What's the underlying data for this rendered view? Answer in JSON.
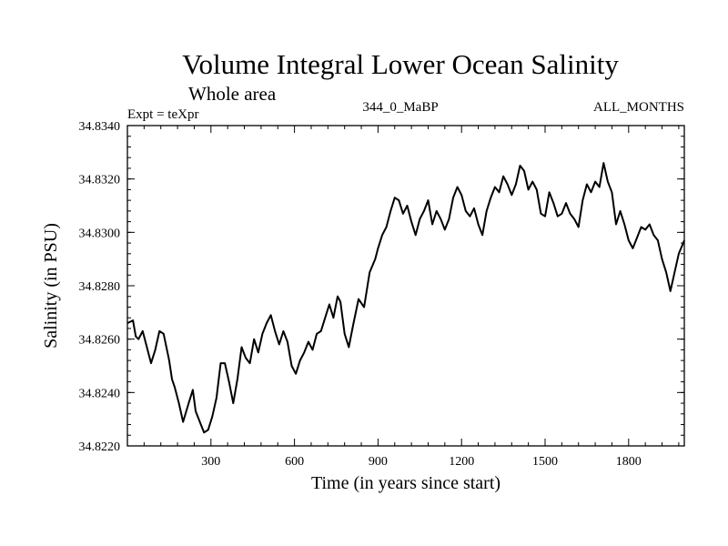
{
  "chart_data": {
    "type": "line",
    "title": "Volume Integral Lower Ocean Salinity",
    "subtitle_left": "Whole area",
    "expt_label": "Expt = teXpr",
    "center_label": "344_0_MaBP",
    "right_label": "ALL_MONTHS",
    "xlabel": "Time (in years since start)",
    "ylabel": "Salinity (in PSU)",
    "xlim": [
      0,
      2000
    ],
    "ylim": [
      34.822,
      34.834
    ],
    "xticks": [
      300,
      600,
      900,
      1200,
      1500,
      1800
    ],
    "xtick_labels": [
      "300",
      "600",
      "900",
      "1200",
      "1500",
      "1800"
    ],
    "yticks": [
      34.822,
      34.824,
      34.826,
      34.828,
      34.83,
      34.832,
      34.834
    ],
    "ytick_labels": [
      "34.8220",
      "34.8240",
      "34.8260",
      "34.8280",
      "34.8300",
      "34.8320",
      "34.8340"
    ],
    "grid": false,
    "series": [
      {
        "color": "#000000",
        "x": [
          0,
          20,
          30,
          40,
          55,
          70,
          85,
          100,
          115,
          130,
          150,
          160,
          170,
          185,
          200,
          220,
          235,
          245,
          260,
          275,
          290,
          305,
          320,
          335,
          350,
          365,
          380,
          395,
          410,
          425,
          440,
          455,
          470,
          485,
          500,
          515,
          530,
          545,
          560,
          575,
          590,
          605,
          620,
          635,
          650,
          665,
          680,
          695,
          710,
          725,
          740,
          755,
          765,
          780,
          795,
          810,
          830,
          850,
          870,
          890,
          900,
          915,
          930,
          945,
          960,
          975,
          990,
          1005,
          1020,
          1035,
          1050,
          1065,
          1080,
          1095,
          1110,
          1125,
          1140,
          1155,
          1170,
          1185,
          1200,
          1215,
          1230,
          1245,
          1260,
          1275,
          1290,
          1305,
          1320,
          1335,
          1350,
          1365,
          1380,
          1395,
          1410,
          1425,
          1440,
          1455,
          1470,
          1485,
          1500,
          1515,
          1530,
          1545,
          1560,
          1575,
          1590,
          1605,
          1620,
          1635,
          1650,
          1665,
          1680,
          1695,
          1710,
          1725,
          1740,
          1755,
          1770,
          1785,
          1800,
          1815,
          1830,
          1845,
          1860,
          1875,
          1890,
          1905,
          1920,
          1935,
          1950,
          1965,
          1980,
          2000
        ],
        "values": [
          34.8266,
          34.8267,
          34.8261,
          34.826,
          34.8263,
          34.8257,
          34.8251,
          34.8256,
          34.8263,
          34.8262,
          34.8252,
          34.8245,
          34.8242,
          34.8236,
          34.8229,
          34.8236,
          34.8241,
          34.8233,
          34.8229,
          34.8225,
          34.8226,
          34.8231,
          34.8238,
          34.8251,
          34.8251,
          34.8244,
          34.8236,
          34.8245,
          34.8257,
          34.8253,
          34.8251,
          34.826,
          34.8255,
          34.8262,
          34.8266,
          34.8269,
          34.8263,
          34.8258,
          34.8263,
          34.8259,
          34.825,
          34.8247,
          34.8252,
          34.8255,
          34.8259,
          34.8256,
          34.8262,
          34.8263,
          34.8268,
          34.8273,
          34.8268,
          34.8276,
          34.8274,
          34.8262,
          34.8257,
          34.8265,
          34.8275,
          34.8272,
          34.8285,
          34.829,
          34.8294,
          34.8299,
          34.8302,
          34.8308,
          34.8313,
          34.8312,
          34.8307,
          34.831,
          34.8304,
          34.8299,
          34.8305,
          34.8308,
          34.8312,
          34.8303,
          34.8308,
          34.8305,
          34.8301,
          34.8305,
          34.8313,
          34.8317,
          34.8314,
          34.8308,
          34.8306,
          34.8309,
          34.8303,
          34.8299,
          34.8308,
          34.8313,
          34.8317,
          34.8315,
          34.8321,
          34.8318,
          34.8314,
          34.8318,
          34.8325,
          34.8323,
          34.8316,
          34.8319,
          34.8316,
          34.8307,
          34.8306,
          34.8315,
          34.8311,
          34.8306,
          34.8307,
          34.8311,
          34.8307,
          34.8305,
          34.8302,
          34.8312,
          34.8318,
          34.8315,
          34.8319,
          34.8317,
          34.8326,
          34.8319,
          34.8315,
          34.8303,
          34.8308,
          34.8303,
          34.8297,
          34.8294,
          34.8298,
          34.8302,
          34.8301,
          34.8303,
          34.8299,
          34.8297,
          34.829,
          34.8285,
          34.8278,
          34.8285,
          34.8292,
          34.8297
        ]
      }
    ]
  }
}
